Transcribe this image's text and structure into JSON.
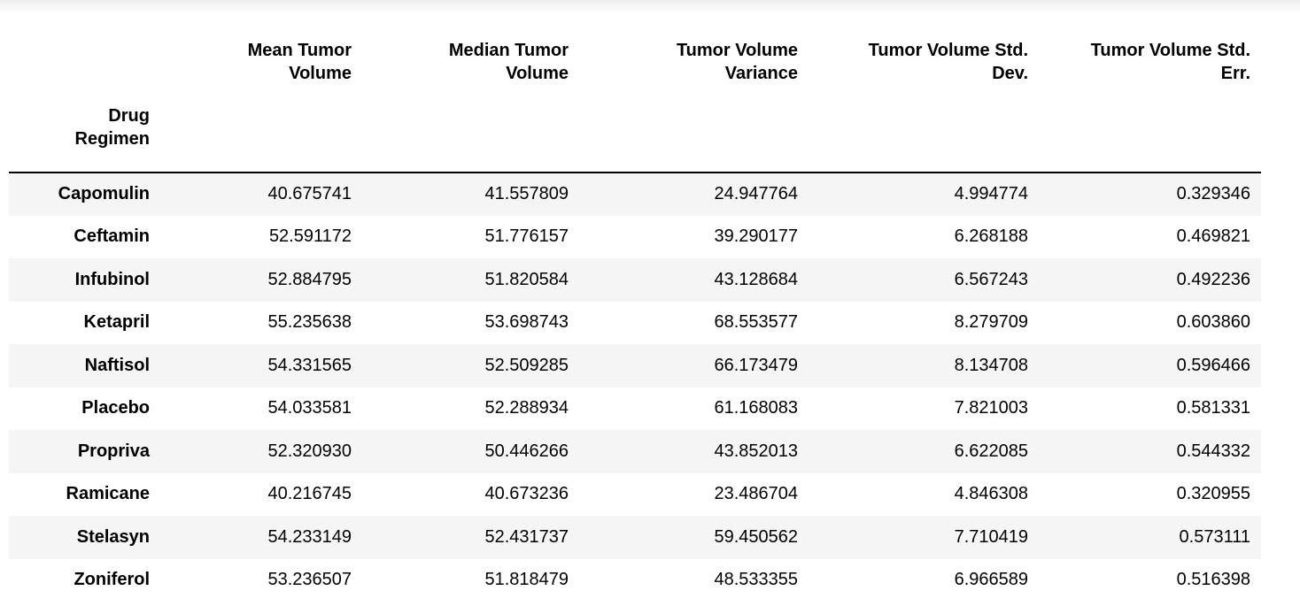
{
  "table": {
    "index_name": "Drug\nRegimen",
    "columns": [
      "Mean Tumor\nVolume",
      "Median Tumor\nVolume",
      "Tumor Volume\nVariance",
      "Tumor Volume Std.\nDev.",
      "Tumor Volume Std.\nErr."
    ],
    "rows": [
      {
        "label": "Capomulin",
        "values": [
          "40.675741",
          "41.557809",
          "24.947764",
          "4.994774",
          "0.329346"
        ]
      },
      {
        "label": "Ceftamin",
        "values": [
          "52.591172",
          "51.776157",
          "39.290177",
          "6.268188",
          "0.469821"
        ]
      },
      {
        "label": "Infubinol",
        "values": [
          "52.884795",
          "51.820584",
          "43.128684",
          "6.567243",
          "0.492236"
        ]
      },
      {
        "label": "Ketapril",
        "values": [
          "55.235638",
          "53.698743",
          "68.553577",
          "8.279709",
          "0.603860"
        ]
      },
      {
        "label": "Naftisol",
        "values": [
          "54.331565",
          "52.509285",
          "66.173479",
          "8.134708",
          "0.596466"
        ]
      },
      {
        "label": "Placebo",
        "values": [
          "54.033581",
          "52.288934",
          "61.168083",
          "7.821003",
          "0.581331"
        ]
      },
      {
        "label": "Propriva",
        "values": [
          "52.320930",
          "50.446266",
          "43.852013",
          "6.622085",
          "0.544332"
        ]
      },
      {
        "label": "Ramicane",
        "values": [
          "40.216745",
          "40.673236",
          "23.486704",
          "4.846308",
          "0.320955"
        ]
      },
      {
        "label": "Stelasyn",
        "values": [
          "54.233149",
          "52.431737",
          "59.450562",
          "7.710419",
          "0.573111"
        ]
      },
      {
        "label": "Zoniferol",
        "values": [
          "53.236507",
          "51.818479",
          "48.533355",
          "6.966589",
          "0.516398"
        ]
      }
    ]
  }
}
